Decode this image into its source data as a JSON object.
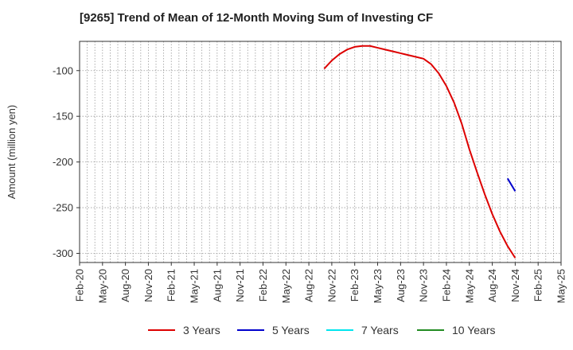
{
  "chart_data": {
    "type": "line",
    "title": "[9265]  Trend of Mean of 12-Month Moving Sum of Investing CF",
    "xlabel": "",
    "ylabel": "Amount (million yen)",
    "x_categories": [
      "Feb-20",
      "May-20",
      "Aug-20",
      "Nov-20",
      "Feb-21",
      "May-21",
      "Aug-21",
      "Nov-21",
      "Feb-22",
      "May-22",
      "Aug-22",
      "Nov-22",
      "Feb-23",
      "May-23",
      "Aug-23",
      "Nov-23",
      "Feb-24",
      "May-24",
      "Aug-24",
      "Nov-24",
      "Feb-25",
      "May-25"
    ],
    "ylim": [
      -310,
      -68
    ],
    "yticks": [
      -100,
      -150,
      -200,
      -250,
      -300
    ],
    "grid": true,
    "legend_position": "bottom",
    "series": [
      {
        "name": "3 Years",
        "color": "#dd0000",
        "points": [
          [
            "Oct-22",
            -98
          ],
          [
            "Nov-22",
            -89
          ],
          [
            "Dec-22",
            -82
          ],
          [
            "Jan-23",
            -77
          ],
          [
            "Feb-23",
            -74
          ],
          [
            "Mar-23",
            -73
          ],
          [
            "Apr-23",
            -73
          ],
          [
            "May-23",
            -75
          ],
          [
            "Jun-23",
            -77
          ],
          [
            "Jul-23",
            -79
          ],
          [
            "Aug-23",
            -81
          ],
          [
            "Sep-23",
            -83
          ],
          [
            "Oct-23",
            -85
          ],
          [
            "Nov-23",
            -87
          ],
          [
            "Dec-23",
            -93
          ],
          [
            "Jan-24",
            -103
          ],
          [
            "Feb-24",
            -117
          ],
          [
            "Mar-24",
            -135
          ],
          [
            "Apr-24",
            -158
          ],
          [
            "May-24",
            -186
          ],
          [
            "Jun-24",
            -211
          ],
          [
            "Jul-24",
            -235
          ],
          [
            "Aug-24",
            -257
          ],
          [
            "Sep-24",
            -276
          ],
          [
            "Oct-24",
            -292
          ],
          [
            "Nov-24",
            -305
          ]
        ]
      },
      {
        "name": "5 Years",
        "color": "#0000cc",
        "points": [
          [
            "Oct-24",
            -218
          ],
          [
            "Nov-24",
            -232
          ]
        ]
      },
      {
        "name": "7 Years",
        "color": "#00e5ee",
        "points": []
      },
      {
        "name": "10 Years",
        "color": "#228b22",
        "points": []
      }
    ]
  }
}
